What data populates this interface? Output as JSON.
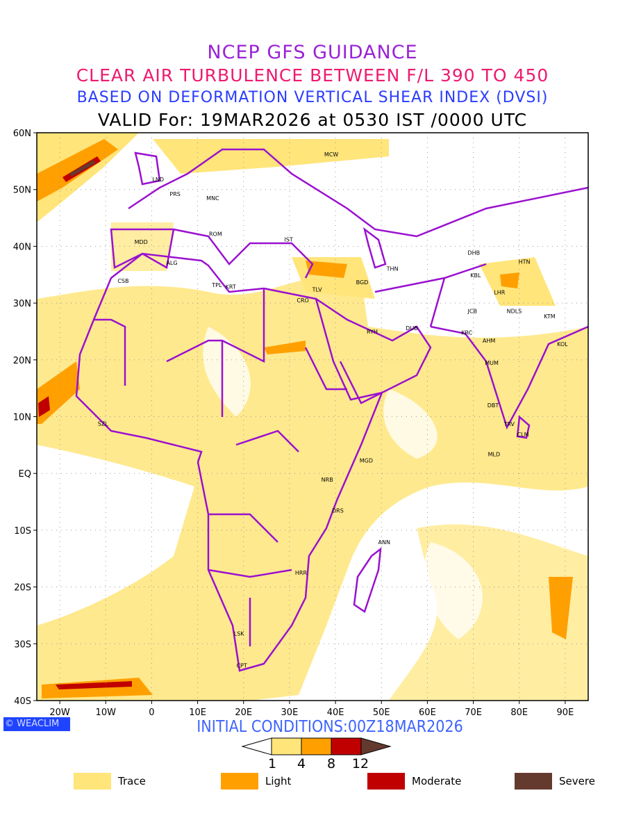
{
  "header": {
    "line1": "NCEP GFS GUIDANCE",
    "line2": "CLEAR AIR TURBULENCE BETWEEN F/L 390 TO 450",
    "line3": "BASED ON DEFORMATION VERTICAL SHEAR INDEX (DVSI)",
    "line4": "VALID For: 19MAR2026 at 0530 IST /0000 UTC"
  },
  "map": {
    "lon_range": [
      -25,
      95
    ],
    "lat_range": [
      -40,
      60
    ],
    "lat_ticks": [
      {
        "v": 60,
        "label": "60N"
      },
      {
        "v": 50,
        "label": "50N"
      },
      {
        "v": 40,
        "label": "40N"
      },
      {
        "v": 30,
        "label": "30N"
      },
      {
        "v": 20,
        "label": "20N"
      },
      {
        "v": 10,
        "label": "10N"
      },
      {
        "v": 0,
        "label": "EQ"
      },
      {
        "v": -10,
        "label": "10S"
      },
      {
        "v": -20,
        "label": "20S"
      },
      {
        "v": -30,
        "label": "30S"
      },
      {
        "v": -40,
        "label": "40S"
      }
    ],
    "lon_ticks": [
      {
        "v": -20,
        "label": "20W"
      },
      {
        "v": -10,
        "label": "10W"
      },
      {
        "v": 0,
        "label": "0"
      },
      {
        "v": 10,
        "label": "10E"
      },
      {
        "v": 20,
        "label": "20E"
      },
      {
        "v": 30,
        "label": "30E"
      },
      {
        "v": 40,
        "label": "40E"
      },
      {
        "v": 50,
        "label": "50E"
      },
      {
        "v": 60,
        "label": "60E"
      },
      {
        "v": 70,
        "label": "70E"
      },
      {
        "v": 80,
        "label": "80E"
      },
      {
        "v": 90,
        "label": "90E"
      }
    ],
    "cities": [
      {
        "n": "MCW",
        "lon": 39.1,
        "lat": 56.2
      },
      {
        "n": "LND",
        "lon": 1.4,
        "lat": 51.8
      },
      {
        "n": "PRS",
        "lon": 5.1,
        "lat": 49.2
      },
      {
        "n": "MNC",
        "lon": 13.3,
        "lat": 48.5
      },
      {
        "n": "ROM",
        "lon": 13.9,
        "lat": 42.2
      },
      {
        "n": "MDD",
        "lon": -2.3,
        "lat": 40.8
      },
      {
        "n": "IST",
        "lon": 29.8,
        "lat": 41.2
      },
      {
        "n": "ALG",
        "lon": 4.4,
        "lat": 37.1
      },
      {
        "n": "CSB",
        "lon": -6.2,
        "lat": 33.9
      },
      {
        "n": "TPL",
        "lon": 14.2,
        "lat": 33.2
      },
      {
        "n": "KRT",
        "lon": 17.2,
        "lat": 32.9
      },
      {
        "n": "TLV",
        "lon": 36,
        "lat": 32.4
      },
      {
        "n": "CRO",
        "lon": 32.9,
        "lat": 30.5
      },
      {
        "n": "BGD",
        "lon": 45.8,
        "lat": 33.7
      },
      {
        "n": "THN",
        "lon": 52.4,
        "lat": 36.1
      },
      {
        "n": "DHB",
        "lon": 70.1,
        "lat": 38.9
      },
      {
        "n": "HTN",
        "lon": 81.1,
        "lat": 37.3
      },
      {
        "n": "KBL",
        "lon": 70.5,
        "lat": 34.9
      },
      {
        "n": "LHR",
        "lon": 75.7,
        "lat": 31.9
      },
      {
        "n": "JCB",
        "lon": 69.8,
        "lat": 28.6
      },
      {
        "n": "NDLS",
        "lon": 78.9,
        "lat": 28.6
      },
      {
        "n": "KTM",
        "lon": 86.6,
        "lat": 27.7
      },
      {
        "n": "RYH",
        "lon": 48,
        "lat": 25
      },
      {
        "n": "DUB",
        "lon": 56.6,
        "lat": 25.6
      },
      {
        "n": "KRC",
        "lon": 68.6,
        "lat": 24.8
      },
      {
        "n": "AHM",
        "lon": 73.4,
        "lat": 23.4
      },
      {
        "n": "KOL",
        "lon": 89.4,
        "lat": 22.8
      },
      {
        "n": "MUM",
        "lon": 74,
        "lat": 19.5
      },
      {
        "n": "DBT",
        "lon": 74.3,
        "lat": 12
      },
      {
        "n": "TRV",
        "lon": 77.8,
        "lat": 8.7
      },
      {
        "n": "CLM",
        "lon": 80.8,
        "lat": 6.9
      },
      {
        "n": "MLD",
        "lon": 74.5,
        "lat": 3.4
      },
      {
        "n": "SZL",
        "lon": -10.6,
        "lat": 8.8
      },
      {
        "n": "MGD",
        "lon": 46.7,
        "lat": 2.3
      },
      {
        "n": "NRB",
        "lon": 38.2,
        "lat": -1.1
      },
      {
        "n": "DRS",
        "lon": 40.5,
        "lat": -6.5
      },
      {
        "n": "ANN",
        "lon": 50.6,
        "lat": -12.1
      },
      {
        "n": "HRR",
        "lon": 32.5,
        "lat": -17.5
      },
      {
        "n": "LSK",
        "lon": 19,
        "lat": -28.2
      },
      {
        "n": "CPT",
        "lon": 19.6,
        "lat": -33.8
      }
    ]
  },
  "footer": {
    "logo": "WEACLIM",
    "initial": "INITIAL CONDITIONS:00Z18MAR2026",
    "colorbar_ticks": [
      "1",
      "4",
      "8",
      "12"
    ],
    "legend": [
      {
        "label": "Trace",
        "color": "#ffe57a"
      },
      {
        "label": "Light",
        "color": "#ffa000"
      },
      {
        "label": "Moderate",
        "color": "#c00000"
      },
      {
        "label": "Severe",
        "color": "#653a2e"
      }
    ],
    "colors": {
      "trace": "#ffe57a",
      "light": "#ffa000",
      "moderate": "#c00000",
      "severe": "#653a2e",
      "border": "#9a10d0"
    }
  }
}
